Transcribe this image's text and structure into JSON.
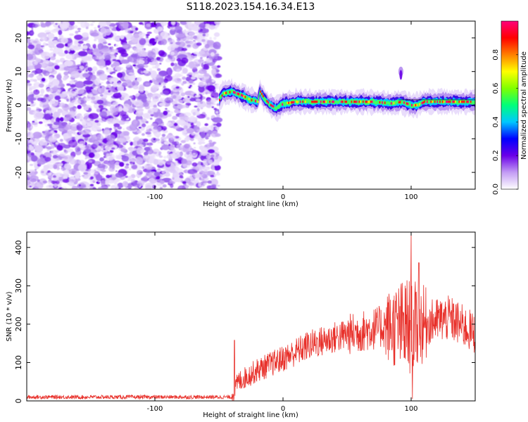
{
  "title": "S118.2023.154.16.34.E13",
  "chart_data": [
    {
      "type": "heatmap",
      "name": "spectrogram",
      "xlabel": "Height of straight line (km)",
      "ylabel": "Frequency (Hz)",
      "xlim": [
        -200,
        150
      ],
      "ylim": [
        -25,
        25
      ],
      "xticks": [
        -100,
        0,
        100
      ],
      "yticks": [
        -20,
        -10,
        0,
        10,
        20
      ],
      "noise_region_x": [
        -200,
        -50
      ],
      "ridge": [
        {
          "x": -50,
          "y": 1.5
        },
        {
          "x": -47,
          "y": 3.5
        },
        {
          "x": -40,
          "y": 4
        },
        {
          "x": -33,
          "y": 3
        },
        {
          "x": -25,
          "y": 1.5
        },
        {
          "x": -20,
          "y": 1
        },
        {
          "x": -18,
          "y": 4
        },
        {
          "x": -15,
          "y": 2
        },
        {
          "x": -10,
          "y": 0
        },
        {
          "x": -5,
          "y": -1
        },
        {
          "x": 0,
          "y": 0.5
        },
        {
          "x": 10,
          "y": 1
        },
        {
          "x": 40,
          "y": 1
        },
        {
          "x": 70,
          "y": 1
        },
        {
          "x": 85,
          "y": 0.5
        },
        {
          "x": 92,
          "y": 1
        },
        {
          "x": 100,
          "y": 0
        },
        {
          "x": 105,
          "y": 0
        },
        {
          "x": 110,
          "y": 1
        },
        {
          "x": 150,
          "y": 1
        }
      ],
      "colorbar": {
        "label": "Normalized spectral amplitude",
        "ticks": [
          "0.0",
          "0.2",
          "0.4",
          "0.6",
          "0.8"
        ],
        "range": [
          0,
          1
        ],
        "colors": [
          "#ffffff",
          "#c39cf4",
          "#6a00e8",
          "#0000ff",
          "#00c8ff",
          "#00ff7a",
          "#80ff00",
          "#ffff00",
          "#ff8000",
          "#ff0000",
          "#ff007a"
        ]
      }
    },
    {
      "type": "line",
      "name": "snr",
      "xlabel": "Height of straight line (km)",
      "ylabel": "SNR (10 * v/v)",
      "xlim": [
        -200,
        150
      ],
      "ylim": [
        0,
        440
      ],
      "xticks": [
        -100,
        0,
        100
      ],
      "yticks": [
        0,
        100,
        200,
        300,
        400
      ],
      "color": "#e8302a",
      "trend": [
        {
          "x": -200,
          "y": 10
        },
        {
          "x": -40,
          "y": 10
        },
        {
          "x": -35,
          "y": 50
        },
        {
          "x": -20,
          "y": 80
        },
        {
          "x": 0,
          "y": 110
        },
        {
          "x": 20,
          "y": 145
        },
        {
          "x": 40,
          "y": 165
        },
        {
          "x": 60,
          "y": 180
        },
        {
          "x": 80,
          "y": 195
        },
        {
          "x": 100,
          "y": 190
        },
        {
          "x": 120,
          "y": 210
        },
        {
          "x": 130,
          "y": 215
        },
        {
          "x": 150,
          "y": 175
        }
      ],
      "peak": {
        "x": 100,
        "y": 440
      }
    }
  ]
}
